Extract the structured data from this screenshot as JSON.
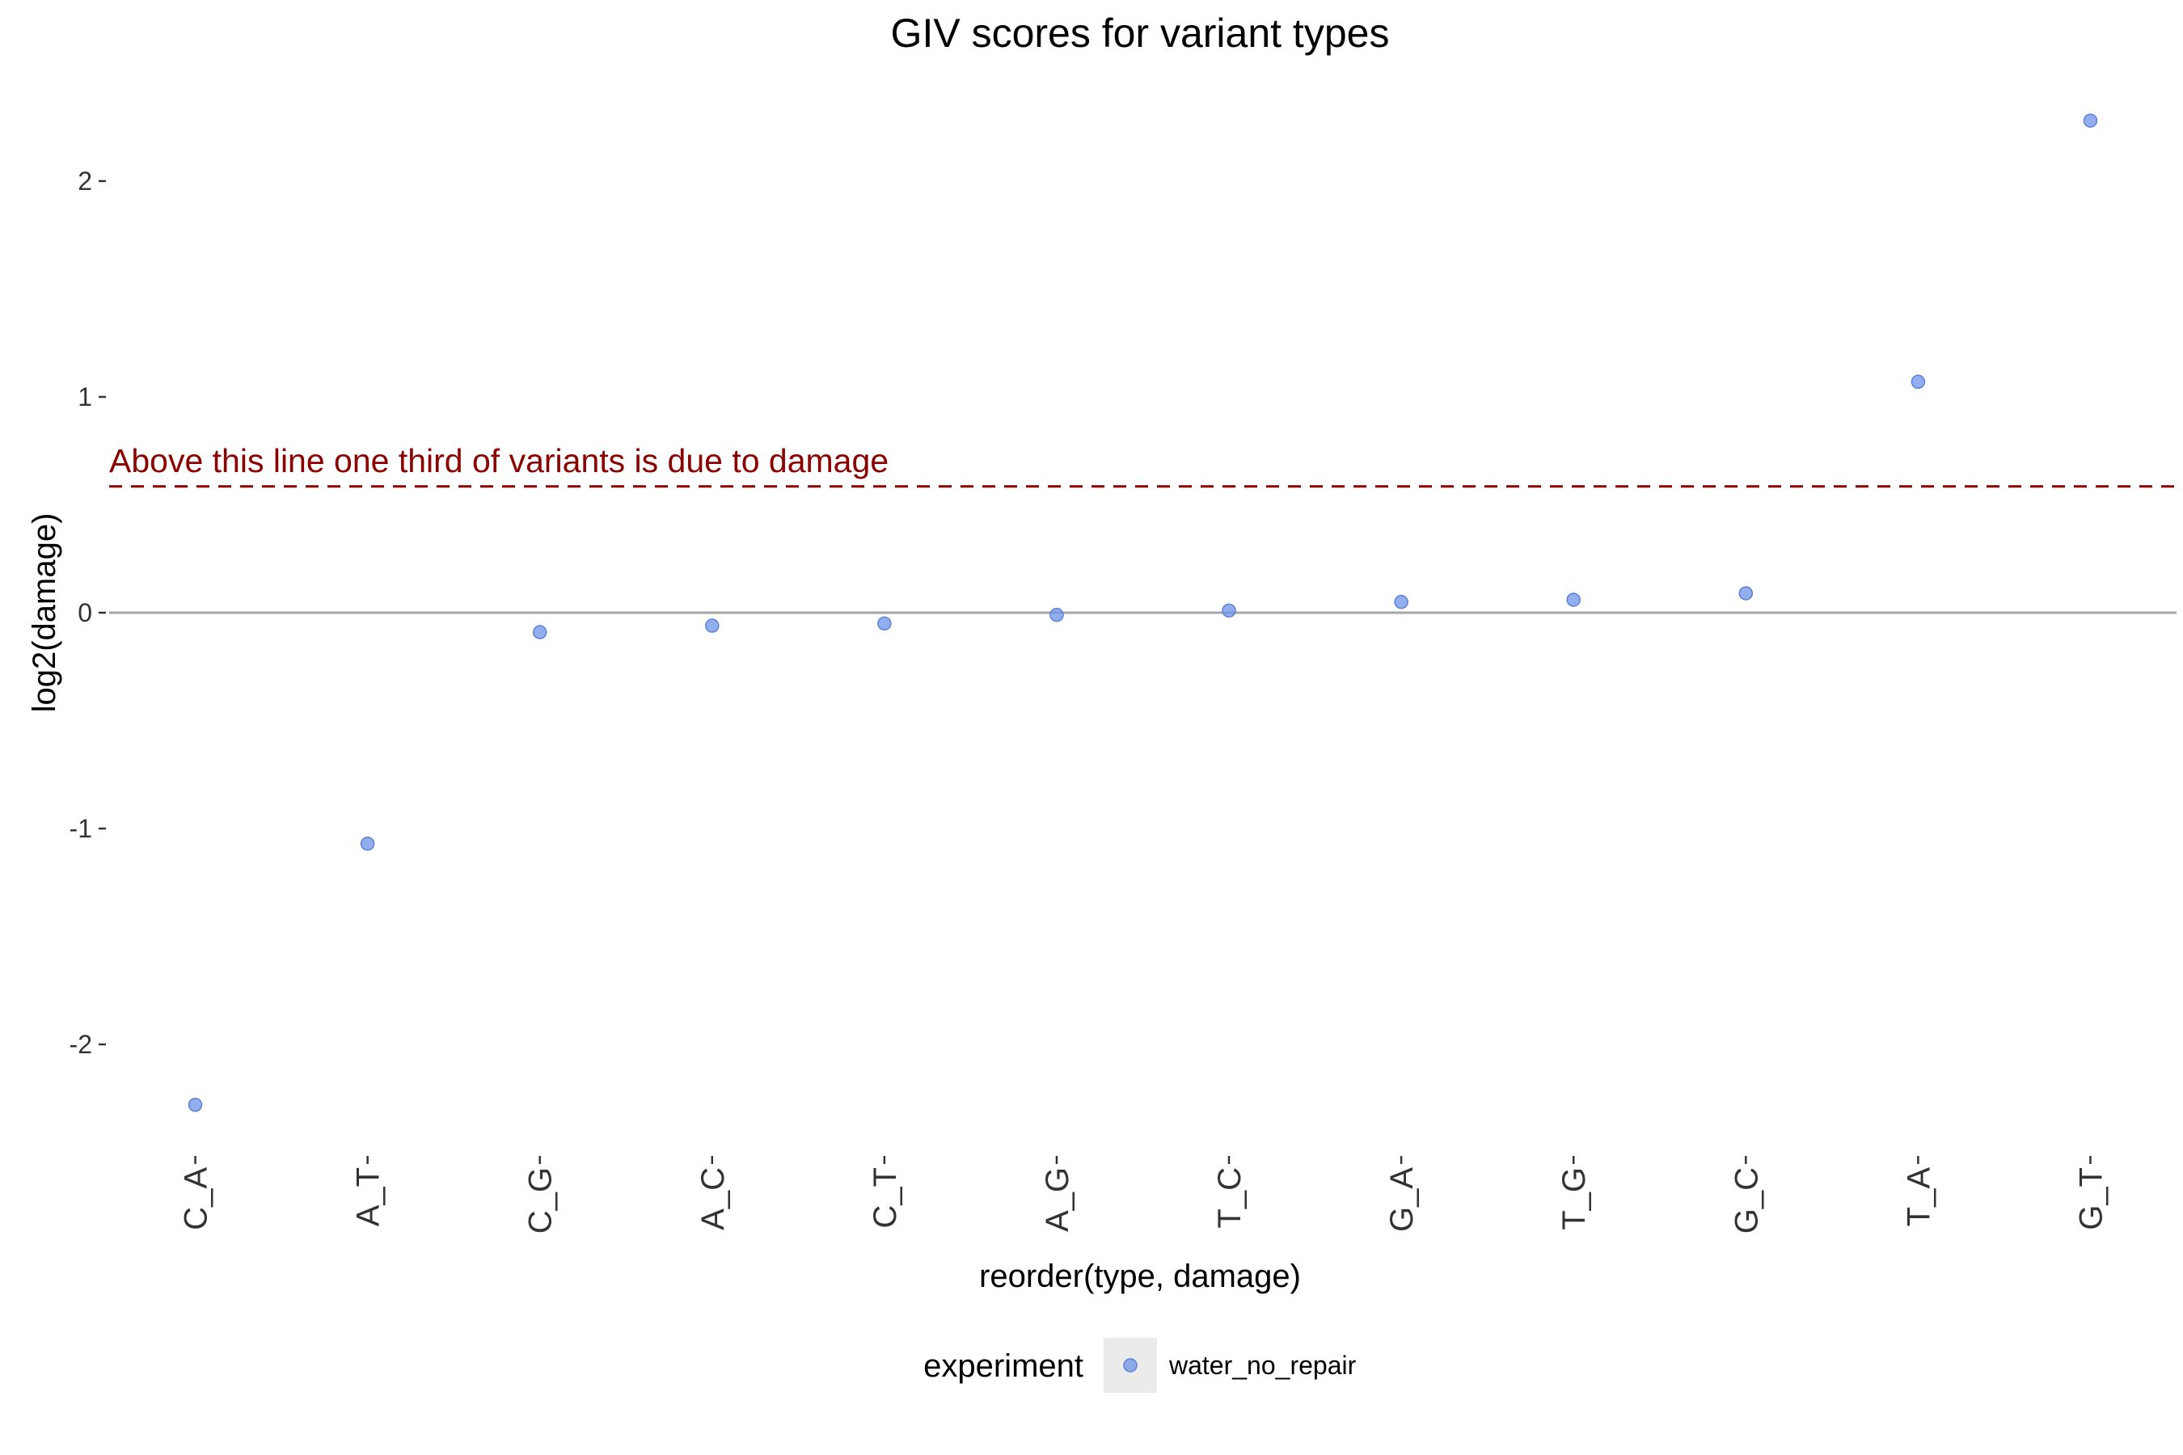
{
  "chart_data": {
    "type": "scatter",
    "title": "GIV scores for variant types",
    "xlabel": "reorder(type, damage)",
    "ylabel": "log2(damage)",
    "categories": [
      "C_A",
      "A_T",
      "C_G",
      "A_C",
      "C_T",
      "A_G",
      "T_C",
      "G_A",
      "T_G",
      "G_C",
      "T_A",
      "G_T"
    ],
    "series": [
      {
        "name": "water_no_repair",
        "values": [
          -2.28,
          -1.07,
          -0.09,
          -0.06,
          -0.05,
          -0.01,
          0.01,
          0.05,
          0.06,
          0.09,
          1.07,
          2.28
        ]
      }
    ],
    "yticks": [
      -2,
      -1,
      0,
      1,
      2
    ],
    "ytick_labels": [
      "-2",
      "-1",
      "0",
      "1",
      "2"
    ],
    "ylim": [
      -2.45,
      2.5
    ],
    "reference_line": {
      "y": 0,
      "style": "solid",
      "color": "#a6a6a6"
    },
    "threshold_line": {
      "y": 0.585,
      "style": "dashed",
      "color": "#8b0000"
    },
    "annotation": "Above this line one third of variants is due to damage",
    "legend": {
      "title": "experiment",
      "position": "bottom",
      "labels": [
        "water_no_repair"
      ]
    },
    "point_color": "#6d93e8",
    "grid": false
  }
}
